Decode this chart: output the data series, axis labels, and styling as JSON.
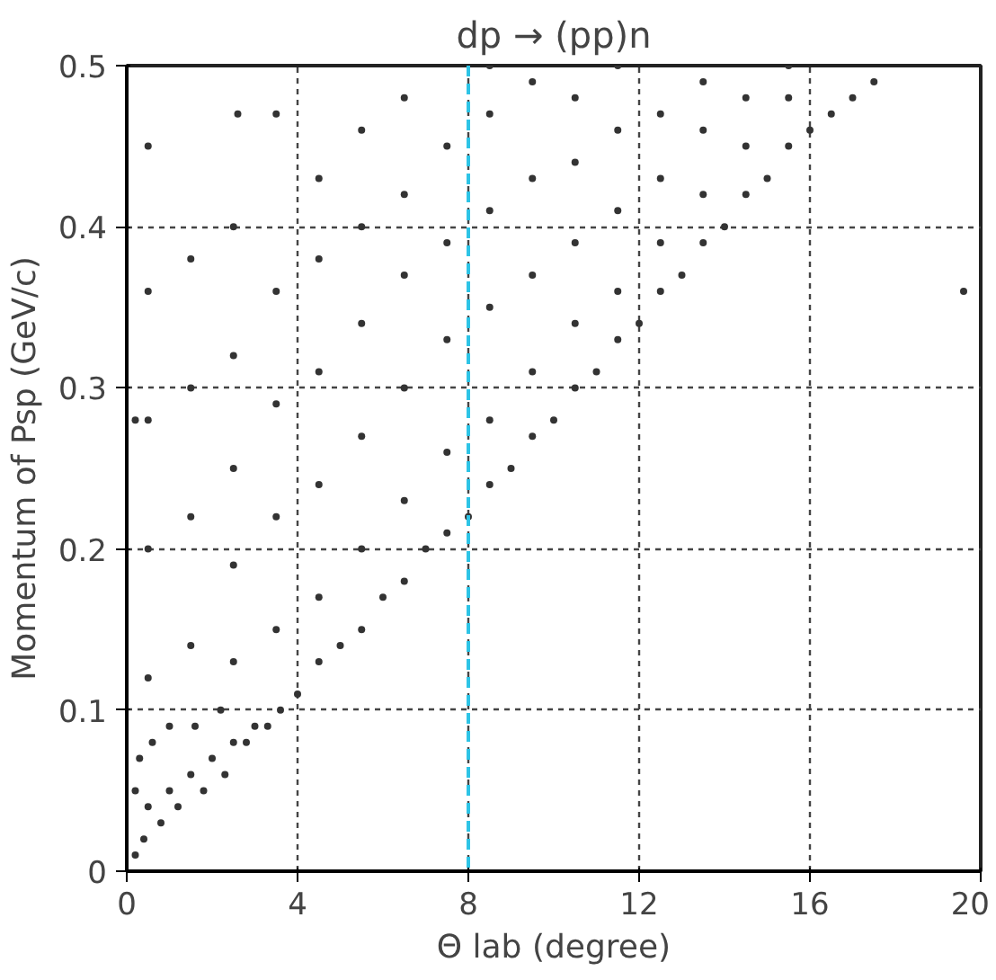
{
  "chart_data": {
    "type": "scatter",
    "title": "dp → (pp)n",
    "xlabel": "Θ lab (degree)",
    "ylabel": "Momentum of Psp (GeV/c)",
    "xlim": [
      0,
      20
    ],
    "ylim": [
      0,
      0.5
    ],
    "xticks": [
      0,
      4,
      8,
      12,
      16,
      20
    ],
    "yticks": [
      0,
      0.1,
      0.2,
      0.3,
      0.4,
      0.5
    ],
    "grid": true,
    "marker": "circle",
    "ref_lines": [
      {
        "axis": "x",
        "value": 8,
        "color": "#2ec4e6",
        "line_style": "dashed"
      }
    ],
    "series": [
      {
        "color": "#333333",
        "x": [
          0.2,
          0.4,
          0.5,
          0.8,
          1.0,
          1.2,
          1.5,
          1.8,
          2.0,
          2.3,
          2.5,
          2.8,
          3.0,
          3.3,
          0.3,
          0.6,
          1.0,
          0.2,
          1.6,
          2.2,
          3.6,
          4.0,
          4.5,
          5.0,
          5.5,
          6.0,
          6.5,
          7.0,
          7.5,
          8.0,
          8.5,
          9.0,
          9.5,
          10.0,
          10.5,
          11.0,
          11.5,
          12.0,
          12.5,
          13.0,
          13.5,
          14.0,
          14.5,
          15.0,
          15.5,
          16.0,
          16.5,
          17.0,
          17.5,
          0.5,
          0.5,
          0.5,
          0.5,
          0.5,
          1.5,
          1.5,
          1.5,
          1.5,
          2.5,
          2.5,
          2.5,
          2.5,
          2.5,
          3.5,
          3.5,
          3.5,
          3.5,
          3.5,
          4.5,
          4.5,
          4.5,
          4.5,
          4.5,
          5.5,
          5.5,
          5.5,
          5.5,
          5.5,
          6.5,
          6.5,
          6.5,
          6.5,
          6.5,
          7.5,
          7.5,
          7.5,
          7.5,
          8.5,
          8.5,
          8.5,
          8.5,
          8.5,
          9.5,
          9.5,
          9.5,
          9.5,
          10.5,
          10.5,
          10.5,
          10.5,
          11.5,
          11.5,
          11.5,
          11.5,
          12.5,
          12.5,
          12.5,
          13.5,
          13.5,
          13.5,
          14.5,
          14.5,
          15.5,
          15.5,
          19.6,
          2.6,
          0.2
        ],
        "values": [
          0.01,
          0.02,
          0.04,
          0.03,
          0.05,
          0.04,
          0.06,
          0.05,
          0.07,
          0.06,
          0.08,
          0.08,
          0.09,
          0.09,
          0.07,
          0.08,
          0.09,
          0.05,
          0.09,
          0.1,
          0.1,
          0.11,
          0.13,
          0.14,
          0.15,
          0.17,
          0.18,
          0.2,
          0.21,
          0.22,
          0.24,
          0.25,
          0.27,
          0.28,
          0.3,
          0.31,
          0.33,
          0.34,
          0.36,
          0.37,
          0.39,
          0.4,
          0.42,
          0.43,
          0.45,
          0.46,
          0.47,
          0.48,
          0.49,
          0.12,
          0.2,
          0.28,
          0.36,
          0.45,
          0.14,
          0.22,
          0.3,
          0.38,
          0.13,
          0.19,
          0.25,
          0.32,
          0.4,
          0.15,
          0.22,
          0.29,
          0.36,
          0.47,
          0.17,
          0.24,
          0.31,
          0.38,
          0.43,
          0.2,
          0.27,
          0.34,
          0.4,
          0.46,
          0.23,
          0.3,
          0.37,
          0.42,
          0.48,
          0.26,
          0.33,
          0.39,
          0.45,
          0.28,
          0.35,
          0.41,
          0.47,
          0.5,
          0.31,
          0.37,
          0.43,
          0.49,
          0.34,
          0.39,
          0.44,
          0.48,
          0.36,
          0.41,
          0.46,
          0.5,
          0.39,
          0.43,
          0.47,
          0.42,
          0.46,
          0.49,
          0.45,
          0.48,
          0.48,
          0.5,
          0.36,
          0.47,
          0.28
        ]
      }
    ]
  }
}
